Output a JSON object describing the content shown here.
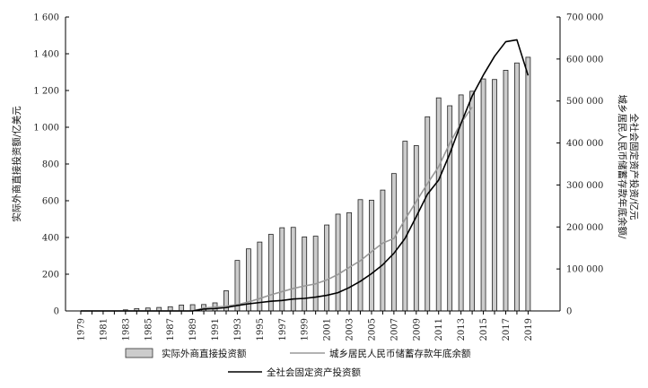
{
  "chart_data": {
    "type": "bar",
    "x": [
      1979,
      1980,
      1981,
      1982,
      1983,
      1984,
      1985,
      1986,
      1987,
      1988,
      1989,
      1990,
      1991,
      1992,
      1993,
      1994,
      1995,
      1996,
      1997,
      1998,
      1999,
      2000,
      2001,
      2002,
      2003,
      2004,
      2005,
      2006,
      2007,
      2008,
      2009,
      2010,
      2011,
      2012,
      2013,
      2014,
      2015,
      2016,
      2017,
      2018,
      2019
    ],
    "x_tick_labels": [
      "1979",
      "1981",
      "1983",
      "1985",
      "1987",
      "1989",
      "1991",
      "1993",
      "1995",
      "1997",
      "1999",
      "2001",
      "2003",
      "2005",
      "2007",
      "2009",
      "2011",
      "2013",
      "2015",
      "2017",
      "2019"
    ],
    "series": [
      {
        "name": "实际外商直接投资额",
        "type": "bar",
        "axis": "left",
        "color": "#cccccc",
        "values": [
          0,
          0,
          0,
          0,
          6,
          13,
          16,
          19,
          23,
          32,
          34,
          35,
          44,
          110,
          275,
          338,
          375,
          417,
          453,
          455,
          403,
          407,
          468,
          527,
          535,
          606,
          603,
          658,
          748,
          924,
          900,
          1057,
          1160,
          1117,
          1176,
          1196,
          1263,
          1260,
          1310,
          1350,
          1381
        ]
      },
      {
        "name": "城乡居民人民币储蓄存款年底余额",
        "type": "line",
        "axis": "right",
        "color": "#999999",
        "values": [
          0,
          0,
          0,
          0,
          0,
          0,
          0,
          0,
          0,
          0,
          0,
          7000,
          9000,
          11500,
          15000,
          21500,
          29500,
          38500,
          46000,
          53500,
          59500,
          64500,
          73800,
          86900,
          103600,
          119600,
          141100,
          161600,
          172500,
          217900,
          260800,
          303300,
          343600,
          399600,
          447600,
          485300,
          null,
          null,
          null,
          null,
          null
        ]
      },
      {
        "name": "全社会固定资产投资额",
        "type": "line",
        "axis": "right",
        "color": "#000000",
        "values": [
          0,
          0,
          0,
          0,
          0,
          0,
          0,
          0,
          0,
          0,
          0,
          4500,
          5600,
          8000,
          13000,
          17000,
          20000,
          23000,
          25000,
          28400,
          29900,
          32900,
          37200,
          43500,
          55600,
          70500,
          88800,
          109900,
          137300,
          172800,
          224600,
          278100,
          311500,
          374700,
          446300,
          512000,
          561900,
          606500,
          641200,
          645700,
          560900
        ]
      }
    ],
    "left_axis": {
      "label": "实际外商直接投资额/亿美元",
      "ylim": [
        0,
        1600
      ],
      "ticks": [
        "0",
        "200",
        "400",
        "600",
        "800",
        "1 000",
        "1 200",
        "1 400",
        "1 600"
      ],
      "tick_values": [
        0,
        200,
        400,
        600,
        800,
        1000,
        1200,
        1400,
        1600
      ]
    },
    "right_axis": {
      "label_lines": [
        "城乡居民人民币储蓄存款年底余额/",
        "全社会固定资产投资/亿元"
      ],
      "ylim": [
        0,
        700000
      ],
      "ticks": [
        "0",
        "100 000",
        "200 000",
        "300 000",
        "400 000",
        "500 000",
        "600 000",
        "700 000"
      ],
      "tick_values": [
        0,
        100000,
        200000,
        300000,
        400000,
        500000,
        600000,
        700000
      ]
    },
    "grid": false,
    "legend_position": "bottom"
  },
  "legend": {
    "bar_label": "实际外商直接投资额",
    "gray_line_label": "城乡居民人民币储蓄存款年底余额",
    "black_line_label": "全社会固定资产投资额"
  }
}
